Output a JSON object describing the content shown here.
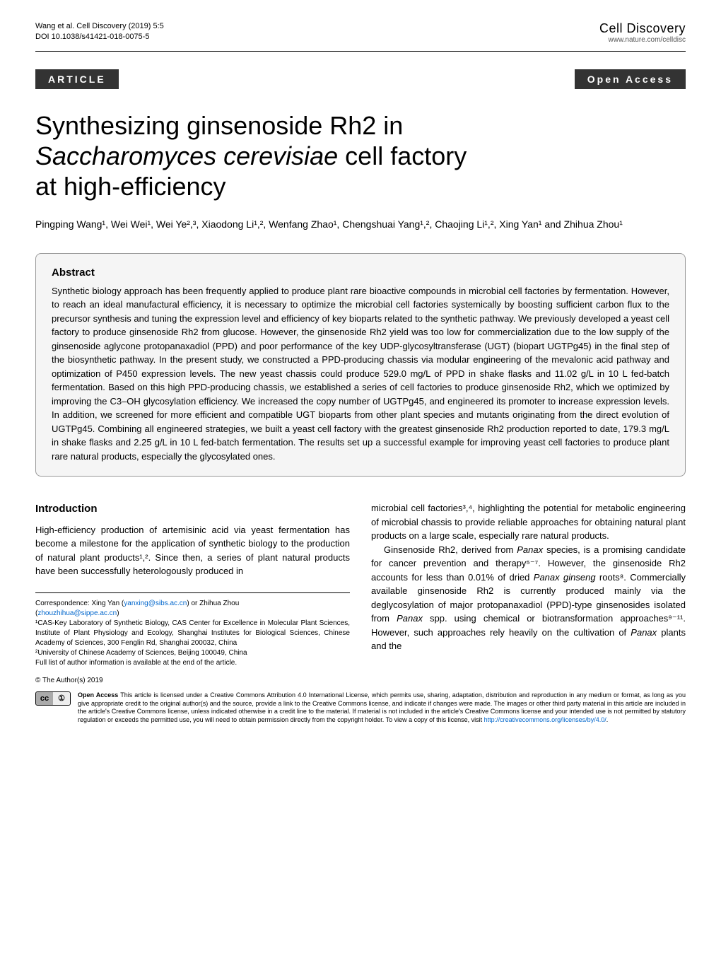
{
  "header": {
    "citation_line1": "Wang et al. Cell Discovery            (2019) 5:5",
    "citation_line2": "DOI 10.1038/s41421-018-0075-5",
    "journal_name": "Cell Discovery",
    "journal_url": "www.nature.com/celldisc"
  },
  "badges": {
    "article": "ARTICLE",
    "open_access": "Open Access"
  },
  "title": {
    "line1": "Synthesizing ginsenoside Rh2 in",
    "line2_italic": "Saccharomyces cerevisiae",
    "line2_rest": " cell factory",
    "line3": "at high-efficiency"
  },
  "authors": "Pingping Wang¹, Wei Wei¹, Wei Ye²,³, Xiaodong Li¹,², Wenfang Zhao¹, Chengshuai Yang¹,², Chaojing Li¹,², Xing Yan¹ and Zhihua Zhou¹",
  "abstract": {
    "heading": "Abstract",
    "text": "Synthetic biology approach has been frequently applied to produce plant rare bioactive compounds in microbial cell factories by fermentation. However, to reach an ideal manufactural efficiency, it is necessary to optimize the microbial cell factories systemically by boosting sufficient carbon flux to the precursor synthesis and tuning the expression level and efficiency of key bioparts related to the synthetic pathway. We previously developed a yeast cell factory to produce ginsenoside Rh2 from glucose. However, the ginsenoside Rh2 yield was too low for commercialization due to the low supply of the ginsenoside aglycone protopanaxadiol (PPD) and poor performance of the key UDP-glycosyltransferase (UGT) (biopart UGTPg45) in the final step of the biosynthetic pathway. In the present study, we constructed a PPD-producing chassis via modular engineering of the mevalonic acid pathway and optimization of P450 expression levels. The new yeast chassis could produce 529.0 mg/L of PPD in shake flasks and 11.02 g/L in 10 L fed-batch fermentation. Based on this high PPD-producing chassis, we established a series of cell factories to produce ginsenoside Rh2, which we optimized by improving the C3–OH glycosylation efficiency. We increased the copy number of UGTPg45, and engineered its promoter to increase expression levels. In addition, we screened for more efficient and compatible UGT bioparts from other plant species and mutants originating from the direct evolution of UGTPg45. Combining all engineered strategies, we built a yeast cell factory with the greatest ginsenoside Rh2 production reported to date, 179.3 mg/L in shake flasks and 2.25 g/L in 10 L fed-batch fermentation. The results set up a successful example for improving yeast cell factories to produce plant rare natural products, especially the glycosylated ones."
  },
  "intro": {
    "heading": "Introduction",
    "col1_p1": "High-efficiency production of artemisinic acid via yeast fermentation has become a milestone for the application of synthetic biology to the production of natural plant products¹,². Since then, a series of plant natural products have been successfully heterologously produced in",
    "col2_p1_a": "microbial cell factories³,⁴, highlighting the potential for metabolic engineering of microbial chassis to provide reliable approaches for obtaining natural plant products on a large scale, especially rare natural products.",
    "col2_p2_a": "Ginsenoside Rh2, derived from ",
    "col2_p2_b": "Panax",
    "col2_p2_c": " species, is a promising candidate for cancer prevention and therapy⁵⁻⁷. However, the ginsenoside Rh2 accounts for less than 0.01% of dried ",
    "col2_p2_d": "Panax ginseng",
    "col2_p2_e": " roots⁸. Commercially available ginsenoside Rh2 is currently produced mainly via the deglycosylation of major protopanaxadiol (PPD)-type ginsenosides isolated from ",
    "col2_p2_f": "Panax",
    "col2_p2_g": " spp. using chemical or biotransformation approaches⁹⁻¹¹. However, such approaches rely heavily on the cultivation of ",
    "col2_p2_h": "Panax",
    "col2_p2_i": " plants and the"
  },
  "correspondence": {
    "line1_a": "Correspondence: Xing Yan (",
    "email1": "yanxing@sibs.ac.cn",
    "line1_b": ") or Zhihua Zhou",
    "line2_a": "(",
    "email2": "zhouzhihua@sippe.ac.cn",
    "line2_b": ")",
    "affil1": "¹CAS-Key Laboratory of Synthetic Biology, CAS Center for Excellence in Molecular Plant Sciences, Institute of Plant Physiology and Ecology, Shanghai Institutes for Biological Sciences, Chinese Academy of Sciences, 300 Fenglin Rd, Shanghai 200032, China",
    "affil2": "²University of Chinese Academy of Sciences, Beijing 100049, China",
    "full_list": "Full list of author information is available at the end of the article."
  },
  "footer": {
    "copyright": "© The Author(s) 2019",
    "cc_symbol": "cc",
    "by_symbol": "①",
    "license_bold": "Open Access",
    "license_text_a": " This article is licensed under a Creative Commons Attribution 4.0 International License, which permits use, sharing, adaptation, distribution and reproduction in any medium or format, as long as you give appropriate credit to the original author(s) and the source, provide a link to the Creative Commons license, and indicate if changes were made. The images or other third party material in this article are included in the article's Creative Commons license, unless indicated otherwise in a credit line to the material. If material is not included in the article's Creative Commons license and your intended use is not permitted by statutory regulation or exceeds the permitted use, you will need to obtain permission directly from the copyright holder. To view a copy of this license, visit ",
    "license_url": "http://creativecommons.org/licenses/by/4.0/",
    "license_text_b": "."
  },
  "style": {
    "colors": {
      "badge_bg": "#333333",
      "badge_fg": "#ffffff",
      "abstract_bg": "#f5f5f5",
      "abstract_border": "#999999",
      "link": "#0066cc",
      "text": "#000000"
    },
    "fonts": {
      "title_size": 36,
      "body_size": 13,
      "abstract_size": 13,
      "small_size": 10,
      "license_size": 9
    }
  }
}
